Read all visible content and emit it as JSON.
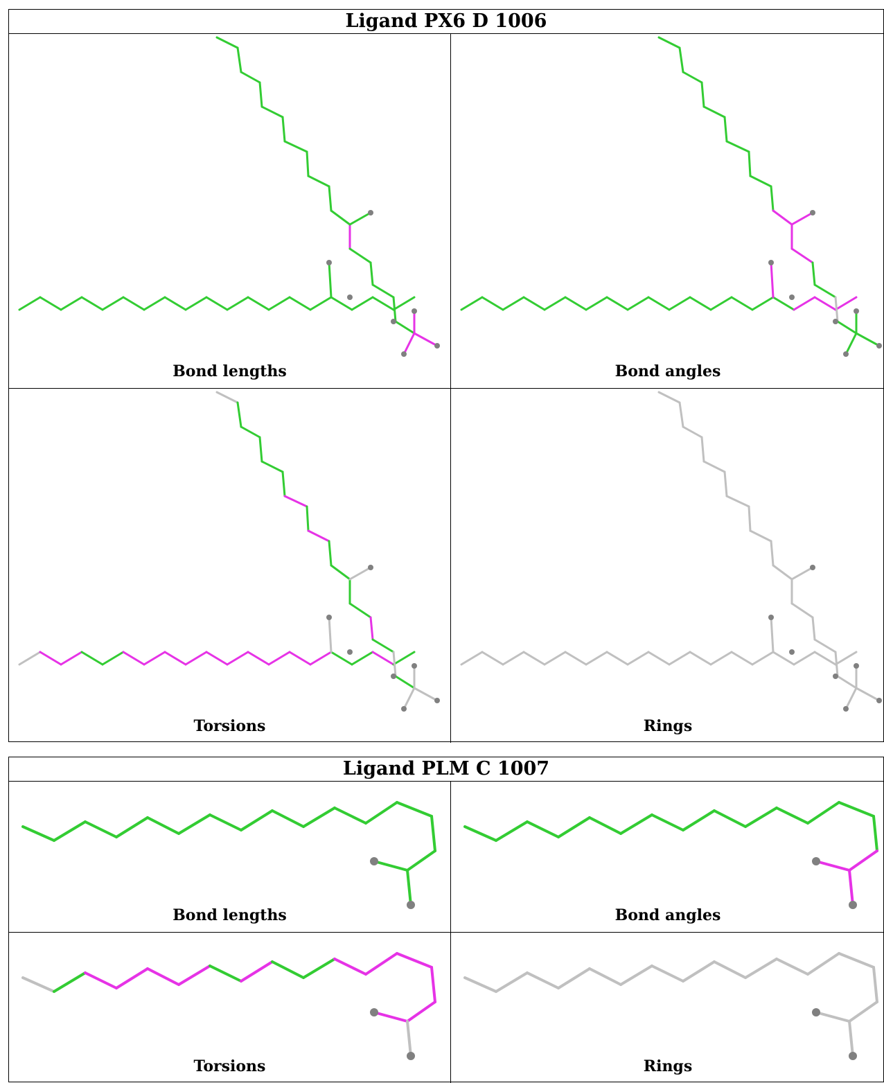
{
  "ligands": [
    {
      "title": "Ligand PX6 D 1006",
      "panels": [
        {
          "caption": "Bond lengths",
          "scheme": "lengths"
        },
        {
          "caption": "Bond angles",
          "scheme": "angles"
        },
        {
          "caption": "Torsions",
          "scheme": "torsions"
        },
        {
          "caption": "Rings",
          "scheme": "rings"
        }
      ]
    },
    {
      "title": "Ligand PLM C 1007",
      "panels": [
        {
          "caption": "Bond lengths",
          "scheme": "lengths"
        },
        {
          "caption": "Bond angles",
          "scheme": "angles"
        },
        {
          "caption": "Torsions",
          "scheme": "torsions"
        },
        {
          "caption": "Rings",
          "scheme": "rings"
        }
      ]
    }
  ],
  "colors": {
    "ok": "#33cc33",
    "outlier": "#e633e6",
    "unassessed": "#c0c0c0",
    "atom": "#808080"
  }
}
